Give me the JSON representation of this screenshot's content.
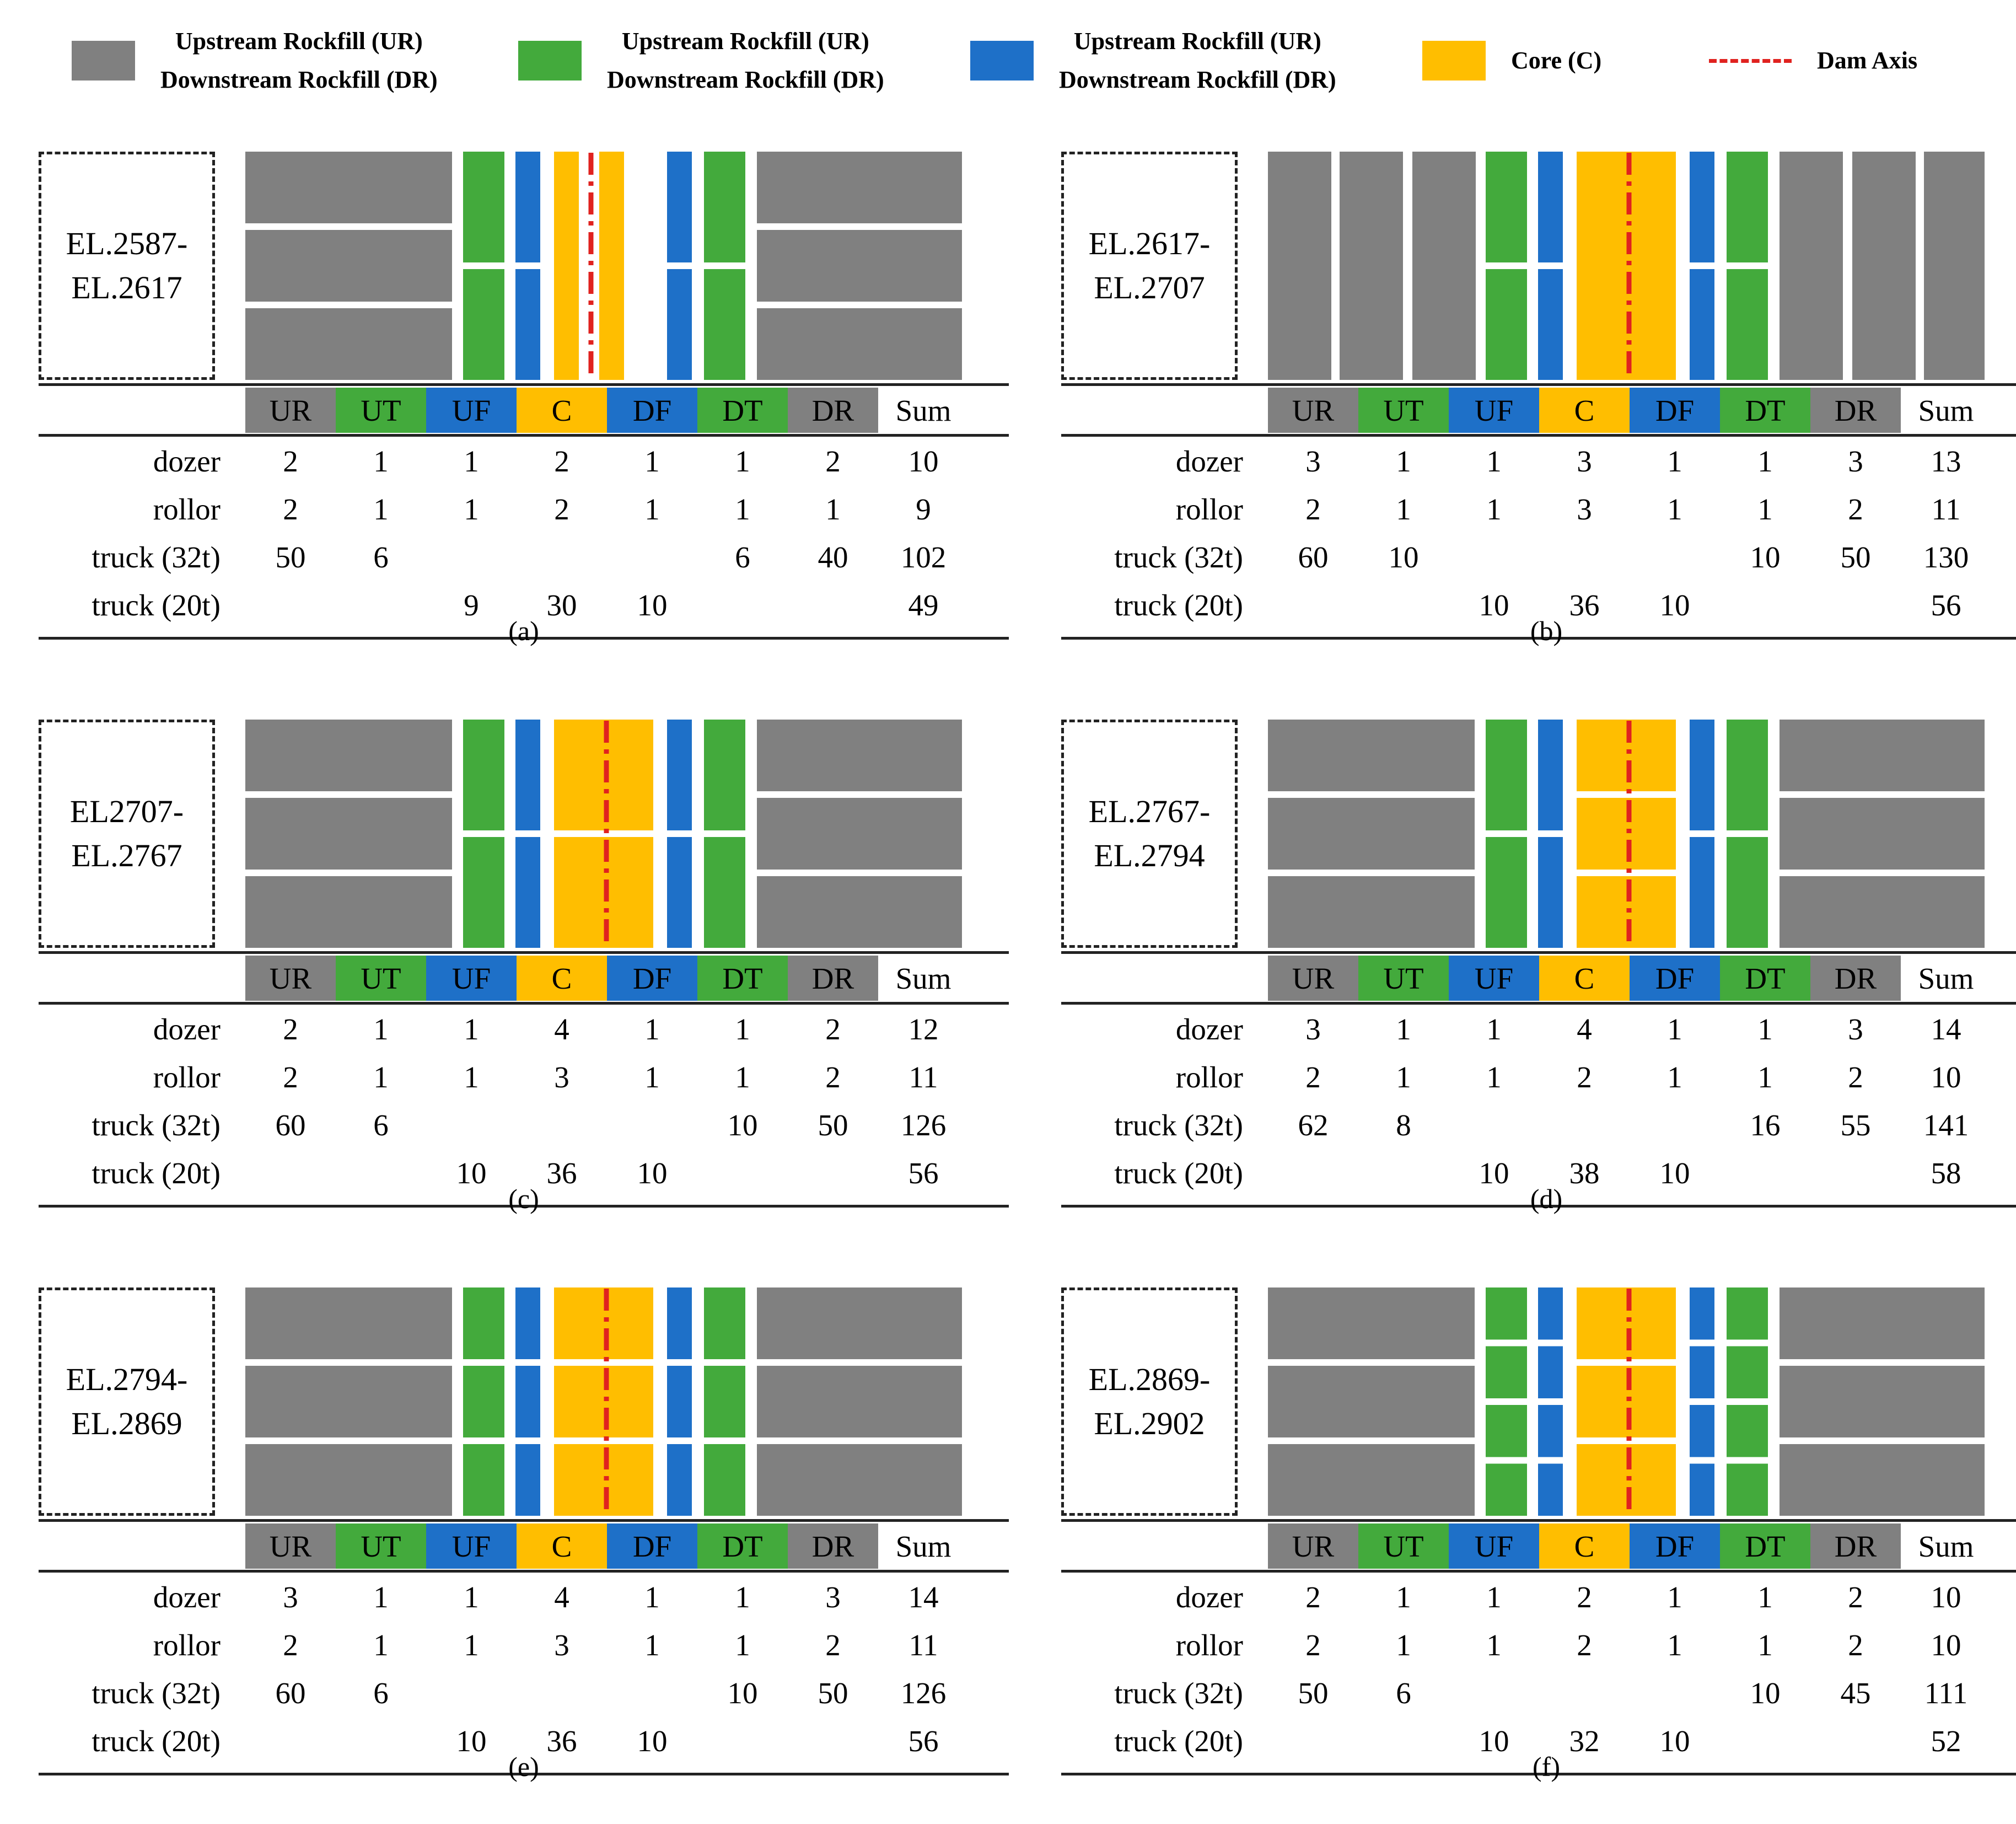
{
  "legend": [
    {
      "key": "gray",
      "color": "#808080",
      "lines": [
        "Upstream Rockfill (UR)",
        "Downstream Rockfill (DR)"
      ]
    },
    {
      "key": "green",
      "color": "#43aa3c",
      "lines": [
        "Upstream Rockfill (UR)",
        "Downstream Rockfill (DR)"
      ]
    },
    {
      "key": "blue",
      "color": "#1e70c8",
      "lines": [
        "Upstream Rockfill (UR)",
        "Downstream Rockfill (DR)"
      ]
    },
    {
      "key": "core",
      "color": "#ffbe00",
      "lines": [
        "Core (C)"
      ]
    },
    {
      "key": "axis",
      "color": "#e0221f",
      "lines": [
        "Dam Axis"
      ]
    }
  ],
  "columns": [
    {
      "label": "UR",
      "color": "#808080"
    },
    {
      "label": "UT",
      "color": "#43aa3c"
    },
    {
      "label": "UF",
      "color": "#1e70c8"
    },
    {
      "label": "C",
      "color": "#ffbe00"
    },
    {
      "label": "DF",
      "color": "#1e70c8"
    },
    {
      "label": "DT",
      "color": "#43aa3c"
    },
    {
      "label": "DR",
      "color": "#808080"
    },
    {
      "label": "Sum",
      "color": "#ffffff"
    }
  ],
  "row_labels": [
    "dozer",
    "rollor",
    "truck (32t)",
    "truck (20t)"
  ],
  "panels": [
    {
      "id": "a",
      "caption": "(a)",
      "elevation": [
        "EL.2587-",
        "EL.2617"
      ],
      "rows": [
        [
          "2",
          "1",
          "1",
          "2",
          "1",
          "1",
          "2",
          "10"
        ],
        [
          "2",
          "1",
          "1",
          "2",
          "1",
          "1",
          "1",
          "9"
        ],
        [
          "50",
          "6",
          "",
          "",
          "",
          "6",
          "40",
          "102"
        ],
        [
          "",
          "",
          "9",
          "30",
          "10",
          "",
          "",
          "49"
        ]
      ]
    },
    {
      "id": "b",
      "caption": "(b)",
      "elevation": [
        "EL.2617-",
        "EL.2707"
      ],
      "rows": [
        [
          "3",
          "1",
          "1",
          "3",
          "1",
          "1",
          "3",
          "13"
        ],
        [
          "2",
          "1",
          "1",
          "3",
          "1",
          "1",
          "2",
          "11"
        ],
        [
          "60",
          "10",
          "",
          "",
          "",
          "10",
          "50",
          "130"
        ],
        [
          "",
          "",
          "10",
          "36",
          "10",
          "",
          "",
          "56"
        ]
      ]
    },
    {
      "id": "c",
      "caption": "(c)",
      "elevation": [
        "EL2707-",
        "EL.2767"
      ],
      "rows": [
        [
          "2",
          "1",
          "1",
          "4",
          "1",
          "1",
          "2",
          "12"
        ],
        [
          "2",
          "1",
          "1",
          "3",
          "1",
          "1",
          "2",
          "11"
        ],
        [
          "60",
          "6",
          "",
          "",
          "",
          "10",
          "50",
          "126"
        ],
        [
          "",
          "",
          "10",
          "36",
          "10",
          "",
          "",
          "56"
        ]
      ]
    },
    {
      "id": "d",
      "caption": "(d)",
      "elevation": [
        "EL.2767-",
        "EL.2794"
      ],
      "rows": [
        [
          "3",
          "1",
          "1",
          "4",
          "1",
          "1",
          "3",
          "14"
        ],
        [
          "2",
          "1",
          "1",
          "2",
          "1",
          "1",
          "2",
          "10"
        ],
        [
          "62",
          "8",
          "",
          "",
          "",
          "16",
          "55",
          "141"
        ],
        [
          "",
          "",
          "10",
          "38",
          "10",
          "",
          "",
          "58"
        ]
      ]
    },
    {
      "id": "e",
      "caption": "(e)",
      "elevation": [
        "EL.2794-",
        "EL.2869"
      ],
      "rows": [
        [
          "3",
          "1",
          "1",
          "4",
          "1",
          "1",
          "3",
          "14"
        ],
        [
          "2",
          "1",
          "1",
          "3",
          "1",
          "1",
          "2",
          "11"
        ],
        [
          "60",
          "6",
          "",
          "",
          "",
          "10",
          "50",
          "126"
        ],
        [
          "",
          "",
          "10",
          "36",
          "10",
          "",
          "",
          "56"
        ]
      ]
    },
    {
      "id": "f",
      "caption": "(f)",
      "elevation": [
        "EL.2869-",
        "EL.2902"
      ],
      "rows": [
        [
          "2",
          "1",
          "1",
          "2",
          "1",
          "1",
          "2",
          "10"
        ],
        [
          "2",
          "1",
          "1",
          "2",
          "1",
          "1",
          "2",
          "10"
        ],
        [
          "50",
          "6",
          "",
          "",
          "",
          "10",
          "45",
          "111"
        ],
        [
          "",
          "",
          "10",
          "32",
          "10",
          "",
          "",
          "52"
        ]
      ]
    }
  ]
}
